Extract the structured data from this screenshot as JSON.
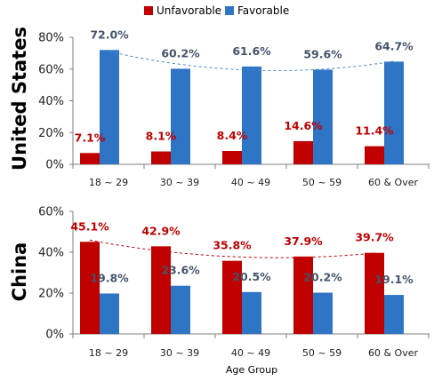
{
  "chart_data": {
    "type": "bar",
    "xlabel": "Age Group",
    "categories": [
      "18 ~ 29",
      "30 ~ 39",
      "40 ~ 49",
      "50 ~ 59",
      "60 & Over"
    ],
    "legend": [
      {
        "name": "Unfavorable",
        "color": "#c00000"
      },
      {
        "name": "Favorable",
        "color": "#2e75c6"
      }
    ],
    "legend_position": "top",
    "grid": false,
    "panels": [
      {
        "title": "United States",
        "ylim": [
          0,
          80
        ],
        "yticks": [
          "0%",
          "20%",
          "40%",
          "60%",
          "80%"
        ],
        "series": [
          {
            "name": "Unfavorable",
            "values": [
              7.1,
              8.1,
              8.4,
              14.6,
              11.4
            ],
            "labels": [
              "7.1%",
              "8.1%",
              "8.4%",
              "14.6%",
              "11.4%"
            ]
          },
          {
            "name": "Favorable",
            "values": [
              72.0,
              60.2,
              61.6,
              59.6,
              64.7
            ],
            "labels": [
              "72.0%",
              "60.2%",
              "61.6%",
              "59.6%",
              "64.7%"
            ]
          }
        ],
        "trendline_series": "Favorable"
      },
      {
        "title": "China",
        "ylim": [
          0,
          60
        ],
        "yticks": [
          "0%",
          "20%",
          "40%",
          "60%"
        ],
        "series": [
          {
            "name": "Unfavorable",
            "values": [
              45.1,
              42.9,
              35.8,
              37.9,
              39.7
            ],
            "labels": [
              "45.1%",
              "42.9%",
              "35.8%",
              "37.9%",
              "39.7%"
            ]
          },
          {
            "name": "Favorable",
            "values": [
              19.8,
              23.6,
              20.5,
              20.2,
              19.1
            ],
            "labels": [
              "19.8%",
              "23.6%",
              "20.5%",
              "20.2%",
              "19.1%"
            ]
          }
        ],
        "trendline_series": "Unfavorable"
      }
    ],
    "colors": {
      "unfavorable": "#c00000",
      "favorable": "#2e75c6",
      "unfavorable_label": "#c00000",
      "favorable_label": "#44546a",
      "favorable_trend": "#4a86c8",
      "unfavorable_trend": "#c00000"
    }
  }
}
